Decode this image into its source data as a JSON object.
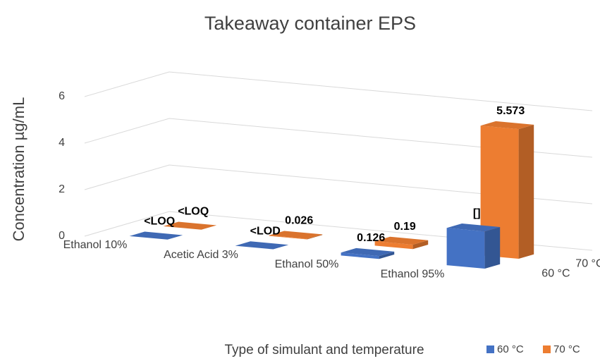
{
  "chart_data": {
    "type": "bar3d",
    "title": "Takeaway container EPS",
    "x_label": "Type of simulant and temperature",
    "y_label": "Concentration µg/mL",
    "categories": [
      "Ethanol 10%",
      "Acetic Acid 3%",
      "Ethanol 50%",
      "Ethanol 95%"
    ],
    "series": [
      {
        "name": "60 °C",
        "color": "#4472c4",
        "values": [
          0,
          0,
          0.126,
          1.6
        ],
        "value_labels": [
          "<LOQ",
          "<LOD",
          "0.126",
          "[]"
        ]
      },
      {
        "name": "70 °C",
        "color": "#ed7d31",
        "values": [
          0,
          0.026,
          0.19,
          5.573
        ],
        "value_labels": [
          "<LOQ",
          "0.026",
          "0.19",
          "5.573"
        ]
      }
    ],
    "ylim": [
      0,
      6
    ],
    "yticks": [
      0,
      2,
      4,
      6
    ],
    "grid": true,
    "legend": "bottom-right"
  }
}
